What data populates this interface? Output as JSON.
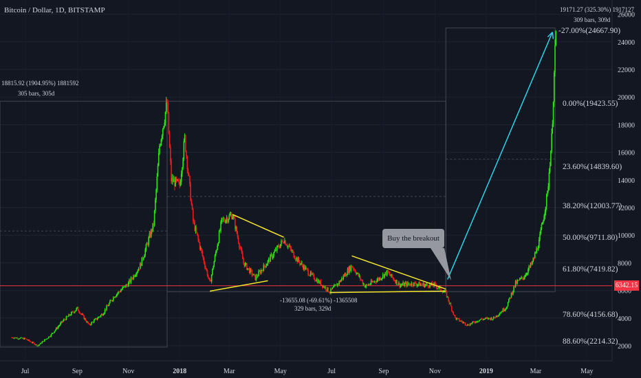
{
  "header": {
    "title": "Bitcoin / Dollar, 1D, BITSTAMP"
  },
  "callout": {
    "text": "Buy the breakout"
  },
  "last_price": "6342.15",
  "colors": {
    "background": "#131722",
    "up": "#2ae414",
    "down": "#ef1a1a",
    "trendline": "#f7e72a",
    "arrow": "#2ad4e8",
    "price_line": "#f23645"
  },
  "measures": [
    {
      "line1": "18815.92 (1904.95%) 1881592",
      "line2": "305 bars, 305d"
    },
    {
      "line1": "-13655.08 (-69.61%) -1365508",
      "line2": "329 bars, 329d"
    },
    {
      "line1": "19171.27 (325.30%) 1917127",
      "line2": "309 bars, 309d"
    }
  ],
  "fib_levels": [
    {
      "label": "-27.00%(24667.90)",
      "price": 24667.9
    },
    {
      "label": "0.00%(19423.55)",
      "price": 19423.55
    },
    {
      "label": "23.60%(14839.60)",
      "price": 14839.6
    },
    {
      "label": "38.20%(12003.77)",
      "price": 12003.77
    },
    {
      "label": "50.00%(9711.80)",
      "price": 9711.8
    },
    {
      "label": "61.80%(7419.82)",
      "price": 7419.82
    },
    {
      "label": "78.60%(4156.68)",
      "price": 4156.68
    },
    {
      "label": "88.60%(2214.32)",
      "price": 2214.32
    }
  ],
  "chart_data": {
    "type": "line",
    "title": "Bitcoin / Dollar, 1D, BITSTAMP",
    "y_ticks": [
      2000,
      4000,
      6000,
      8000,
      10000,
      12000,
      14000,
      16000,
      18000,
      20000,
      22000,
      24000,
      26000
    ],
    "ylim": [
      1000,
      27000
    ],
    "x_ticks": [
      "Jul",
      "Sep",
      "Nov",
      "2018",
      "Mar",
      "May",
      "Jul",
      "Sep",
      "Nov",
      "2019",
      "Mar",
      "May"
    ],
    "series": [
      {
        "x": [
          "2017-06-15",
          "2017-07-01",
          "2017-07-16",
          "2017-08-01",
          "2017-08-15",
          "2017-09-01",
          "2017-09-15",
          "2017-10-01",
          "2017-10-15",
          "2017-11-01",
          "2017-11-15",
          "2017-12-01",
          "2017-12-08",
          "2017-12-17",
          "2017-12-22",
          "2018-01-01",
          "2018-01-07",
          "2018-01-17",
          "2018-02-06",
          "2018-02-20",
          "2018-03-05",
          "2018-03-18",
          "2018-04-01",
          "2018-04-15",
          "2018-05-05",
          "2018-05-20",
          "2018-06-05",
          "2018-06-29",
          "2018-07-10",
          "2018-07-25",
          "2018-08-10",
          "2018-08-25",
          "2018-09-05",
          "2018-09-20",
          "2018-10-05",
          "2018-10-20",
          "2018-11-01",
          "2018-11-14",
          "2018-11-25",
          "2018-12-10",
          "2018-12-25",
          "2019-01-10",
          "2019-01-25",
          "2019-02-05",
          "2019-02-15",
          "2019-02-25",
          "2019-03-05",
          "2019-03-15",
          "2019-03-20",
          "2019-03-25"
        ],
        "y": [
          2600,
          2500,
          2000,
          2800,
          3800,
          4700,
          3500,
          4300,
          5600,
          6500,
          7800,
          10800,
          16500,
          19600,
          14000,
          13600,
          17000,
          11000,
          6500,
          11000,
          11500,
          8000,
          6900,
          8000,
          9700,
          8300,
          7200,
          5900,
          6600,
          7800,
          6300,
          6800,
          7300,
          6400,
          6500,
          6400,
          6400,
          5800,
          4000,
          3500,
          3900,
          4000,
          4800,
          6500,
          7000,
          8000,
          9500,
          13000,
          17000,
          24700
        ]
      }
    ]
  }
}
